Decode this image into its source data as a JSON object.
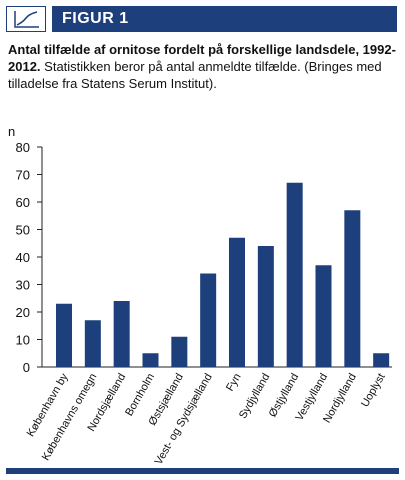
{
  "header": {
    "label": "FIGUR 1",
    "icon": "line-chart-icon"
  },
  "caption": {
    "title": "Antal tilfælde af ornitose fordelt på forskellige landsdele, 1992-2012.",
    "text": "Statistikken beror på antal anmeldte tilfælde. (Bringes med tilladelse fra Statens Serum Institut)."
  },
  "colors": {
    "accent": "#1d3f7c",
    "bar": "#1d3f7c"
  },
  "chart_data": {
    "type": "bar",
    "title": "",
    "xlabel": "",
    "ylabel": "n",
    "ylim": [
      0,
      80
    ],
    "yticks": [
      0,
      10,
      20,
      30,
      40,
      50,
      60,
      70,
      80
    ],
    "grid": false,
    "categories": [
      "København by",
      "Københavns omegn",
      "Nordsjælland",
      "Bornholm",
      "Østsjælland",
      "Vest- og Sydsjælland",
      "Fyn",
      "Sydjylland",
      "Østjylland",
      "Vestjylland",
      "Nordjylland",
      "Uoplyst"
    ],
    "values": [
      23,
      17,
      24,
      5,
      11,
      34,
      47,
      44,
      67,
      37,
      57,
      5
    ]
  }
}
